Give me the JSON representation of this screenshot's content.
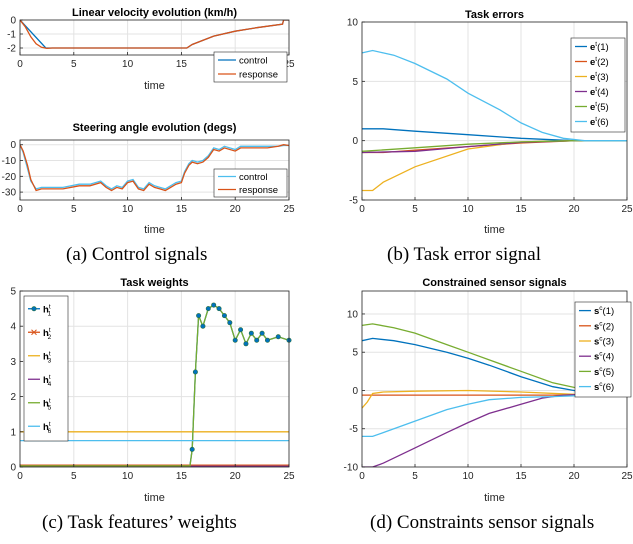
{
  "captions": {
    "a": "(a) Control signals",
    "b": "(b) Task error signal",
    "c": "(c) Task features’ weights",
    "d": "(d) Constraints sensor signals"
  },
  "colors": {
    "blue": "#0072bd",
    "orange": "#d95319",
    "yellow": "#edb120",
    "purple": "#7e2f8e",
    "green": "#77ac30",
    "cyan": "#4dbeee"
  },
  "chart_data": [
    {
      "id": "velocity",
      "type": "line",
      "title": "Linear velocity evolution (km/h)",
      "xlabel": "time",
      "ylabel": "",
      "xlim": [
        0,
        25
      ],
      "ylim": [
        -2.5,
        0
      ],
      "xticks": [
        0,
        5,
        10,
        15,
        20,
        25
      ],
      "yticks": [
        0,
        -1,
        -2
      ],
      "grid": true,
      "legend_position": "bottom-right",
      "series": [
        {
          "name": "control",
          "color": "#0072bd",
          "x": [
            0,
            2.4,
            15.5,
            16,
            18,
            20,
            22,
            24.4,
            24.5,
            25
          ],
          "y": [
            0,
            -2,
            -2,
            -1.75,
            -1.15,
            -0.8,
            -0.55,
            -0.3,
            0,
            0
          ]
        },
        {
          "name": "response",
          "color": "#d95319",
          "x": [
            0,
            0.5,
            1,
            1.5,
            2,
            2.5,
            3,
            15.5,
            16,
            18,
            20,
            22,
            24.4,
            24.5,
            25
          ],
          "y": [
            0,
            -0.5,
            -1.2,
            -1.7,
            -1.95,
            -2.03,
            -2,
            -2,
            -1.75,
            -1.15,
            -0.8,
            -0.55,
            -0.3,
            0,
            0
          ]
        }
      ]
    },
    {
      "id": "steering",
      "type": "line",
      "title": "Steering angle evolution (degs)",
      "xlabel": "time",
      "ylabel": "",
      "xlim": [
        0,
        25
      ],
      "ylim": [
        -35,
        3
      ],
      "xticks": [
        0,
        5,
        10,
        15,
        20,
        25
      ],
      "yticks": [
        0,
        -10,
        -20,
        -30
      ],
      "grid": true,
      "legend_position": "bottom-right",
      "series": [
        {
          "name": "control",
          "color": "#4dbeee",
          "x": [
            0,
            0.3,
            0.7,
            1.0,
            1.5,
            2.0,
            3.0,
            4.0,
            5.5,
            6.5,
            7.5,
            8.0,
            8.5,
            9.0,
            9.5,
            10.0,
            10.5,
            11.0,
            11.5,
            12.0,
            12.5,
            13.0,
            13.5,
            14.0,
            14.5,
            15.0,
            15.3,
            15.7,
            16.0,
            16.5,
            17.0,
            17.5,
            18.0,
            18.5,
            19.0,
            20.0,
            20.5,
            21.0,
            22.0,
            23.0,
            24.0,
            24.5,
            25.0
          ],
          "y": [
            0,
            -5,
            -15,
            -23,
            -28,
            -27,
            -27,
            -27,
            -25,
            -25,
            -23,
            -26,
            -28,
            -26,
            -27,
            -23,
            -22,
            -27,
            -28,
            -24,
            -26,
            -27,
            -28,
            -26,
            -24,
            -23,
            -17,
            -12,
            -10,
            -11,
            -10,
            -7,
            -2,
            -3,
            -1,
            -3,
            -1,
            -1,
            -1,
            -1,
            -1,
            -0.5,
            -0.5
          ]
        },
        {
          "name": "response",
          "color": "#d95319",
          "x": [
            0,
            0.3,
            0.7,
            1.0,
            1.5,
            2.0,
            3.0,
            4.0,
            5.5,
            6.5,
            7.5,
            8.0,
            8.5,
            9.0,
            9.5,
            10.0,
            10.5,
            11.0,
            11.5,
            12.0,
            12.5,
            13.0,
            13.5,
            14.0,
            14.5,
            15.0,
            15.3,
            15.7,
            16.0,
            16.5,
            17.0,
            17.5,
            18.0,
            18.5,
            19.0,
            20.0,
            20.5,
            21.0,
            22.0,
            23.0,
            24.0,
            24.5,
            25.0
          ],
          "y": [
            0,
            -4,
            -13,
            -22,
            -29,
            -28,
            -28,
            -28,
            -26,
            -26,
            -24,
            -27,
            -29,
            -27,
            -28,
            -24,
            -23,
            -28,
            -29,
            -25,
            -27,
            -28,
            -29,
            -27,
            -25,
            -24,
            -18,
            -13,
            -11,
            -12,
            -11,
            -8,
            -3,
            -4,
            -2,
            -4,
            -2,
            -2,
            -2,
            -2,
            -1,
            0,
            -0.5
          ]
        }
      ]
    },
    {
      "id": "task_errors",
      "type": "line",
      "title": "Task errors",
      "xlabel": "time",
      "ylabel": "",
      "xlim": [
        0,
        25
      ],
      "ylim": [
        -5,
        10
      ],
      "xticks": [
        0,
        5,
        10,
        15,
        20,
        25
      ],
      "yticks": [
        10,
        5,
        0,
        -5
      ],
      "grid": true,
      "legend_position": "top-right",
      "series": [
        {
          "name": "(1)",
          "color": "#0072bd",
          "x": [
            0,
            2,
            5,
            10,
            15,
            20,
            25
          ],
          "y": [
            1,
            1,
            0.8,
            0.5,
            0.2,
            0,
            0
          ]
        },
        {
          "name": "(2)",
          "color": "#d95319",
          "x": [
            0,
            2,
            5,
            10,
            15,
            20,
            25
          ],
          "y": [
            -1,
            -1,
            -0.8,
            -0.5,
            -0.2,
            0,
            0
          ]
        },
        {
          "name": "(3)",
          "color": "#edb120",
          "x": [
            0,
            1,
            2,
            5,
            10,
            15,
            20,
            25
          ],
          "y": [
            -4.2,
            -4.2,
            -3.5,
            -2.2,
            -0.7,
            -0.1,
            0,
            0
          ]
        },
        {
          "name": "(4)",
          "color": "#7e2f8e",
          "x": [
            0,
            5,
            10,
            15,
            20,
            25
          ],
          "y": [
            -1,
            -0.9,
            -0.5,
            -0.15,
            0,
            0
          ]
        },
        {
          "name": "(5)",
          "color": "#77ac30",
          "x": [
            0,
            5,
            10,
            15,
            20,
            25
          ],
          "y": [
            -0.9,
            -0.6,
            -0.3,
            -0.1,
            0,
            0
          ]
        },
        {
          "name": "(6)",
          "color": "#4dbeee",
          "x": [
            0,
            1,
            2,
            3,
            5,
            8,
            10,
            13,
            15,
            17,
            19,
            21,
            25
          ],
          "y": [
            7.4,
            7.6,
            7.4,
            7.2,
            6.5,
            5.2,
            4.0,
            2.6,
            1.5,
            0.7,
            0.2,
            0,
            0
          ]
        }
      ]
    },
    {
      "id": "task_weights",
      "type": "line",
      "title": "Task weights",
      "xlabel": "time",
      "ylabel": "",
      "xlim": [
        0,
        25
      ],
      "ylim": [
        0,
        5
      ],
      "xticks": [
        0,
        5,
        10,
        15,
        20,
        25
      ],
      "yticks": [
        5,
        4,
        3,
        2,
        1,
        0
      ],
      "grid": true,
      "legend_position": "top-left",
      "series": [
        {
          "name": "1",
          "color": "#0072bd",
          "x": [
            0,
            15.8,
            16,
            16.3,
            16.6,
            17,
            17.5,
            18,
            18.5,
            19,
            19.5,
            20,
            20.5,
            21,
            21.5,
            22,
            22.5,
            23,
            24,
            25
          ],
          "y": [
            0.05,
            0.05,
            0.5,
            2.7,
            4.3,
            4.0,
            4.5,
            4.6,
            4.5,
            4.3,
            4.1,
            3.6,
            3.9,
            3.5,
            3.8,
            3.6,
            3.8,
            3.6,
            3.7,
            3.6
          ]
        },
        {
          "name": "2",
          "color": "#d95319",
          "x": [
            0,
            25
          ],
          "y": [
            0.05,
            0.05
          ]
        },
        {
          "name": "3",
          "color": "#edb120",
          "x": [
            0,
            25
          ],
          "y": [
            1,
            1
          ]
        },
        {
          "name": "4",
          "color": "#7e2f8e",
          "x": [
            0,
            25
          ],
          "y": [
            0.02,
            0.02
          ]
        },
        {
          "name": "5",
          "color": "#77ac30",
          "x": [
            0,
            15.8,
            16,
            16.3,
            16.6,
            17,
            17.5,
            18,
            18.5,
            19,
            19.5,
            20,
            20.5,
            21,
            21.5,
            22,
            22.5,
            23,
            24,
            25
          ],
          "y": [
            0.03,
            0.03,
            0.5,
            2.7,
            4.3,
            4.0,
            4.5,
            4.6,
            4.5,
            4.3,
            4.1,
            3.6,
            3.9,
            3.5,
            3.8,
            3.6,
            3.8,
            3.6,
            3.7,
            3.6
          ]
        },
        {
          "name": "6",
          "color": "#4dbeee",
          "x": [
            0,
            25
          ],
          "y": [
            0.75,
            0.75
          ]
        }
      ]
    },
    {
      "id": "constrained_sensors",
      "type": "line",
      "title": "Constrained sensor signals",
      "xlabel": "time",
      "ylabel": "",
      "xlim": [
        0,
        25
      ],
      "ylim": [
        -10,
        13
      ],
      "xticks": [
        0,
        5,
        10,
        15,
        20,
        25
      ],
      "yticks": [
        10,
        5,
        0,
        -5,
        -10
      ],
      "grid": true,
      "legend_position": "top-right",
      "series": [
        {
          "name": "(1)",
          "color": "#0072bd",
          "x": [
            0,
            1,
            3,
            5,
            8,
            10,
            12,
            15,
            18,
            20,
            25
          ],
          "y": [
            6.5,
            6.8,
            6.5,
            6.0,
            5.0,
            4.2,
            3.3,
            1.8,
            0.5,
            0,
            -0.5
          ]
        },
        {
          "name": "(2)",
          "color": "#d95319",
          "x": [
            0,
            5,
            10,
            15,
            20,
            25
          ],
          "y": [
            -0.6,
            -0.6,
            -0.6,
            -0.6,
            -0.6,
            -0.6
          ]
        },
        {
          "name": "(3)",
          "color": "#edb120",
          "x": [
            0,
            0.5,
            1,
            2,
            5,
            10,
            15,
            20,
            25
          ],
          "y": [
            -2.3,
            -1.5,
            -0.4,
            -0.2,
            -0.1,
            0,
            -0.2,
            -0.5,
            -0.6
          ]
        },
        {
          "name": "(4)",
          "color": "#7e2f8e",
          "x": [
            0,
            1,
            2,
            5,
            8,
            10,
            12,
            15,
            17,
            19,
            21,
            25
          ],
          "y": [
            -10,
            -10,
            -9.5,
            -7.5,
            -5.5,
            -4.2,
            -3,
            -1.8,
            -1.0,
            -0.6,
            -0.5,
            -0.5
          ]
        },
        {
          "name": "(5)",
          "color": "#77ac30",
          "x": [
            0,
            1,
            3,
            5,
            8,
            10,
            12,
            15,
            18,
            20,
            25
          ],
          "y": [
            8.5,
            8.7,
            8.2,
            7.5,
            6.0,
            5.0,
            4.0,
            2.5,
            1.0,
            0.4,
            0.3
          ]
        },
        {
          "name": "(6)",
          "color": "#4dbeee",
          "x": [
            0,
            1,
            2,
            5,
            8,
            10,
            12,
            15,
            18,
            20,
            25
          ],
          "y": [
            -6,
            -6,
            -5.5,
            -4.0,
            -2.5,
            -1.8,
            -1.2,
            -0.9,
            -0.8,
            -0.7,
            -0.6
          ]
        }
      ]
    }
  ]
}
